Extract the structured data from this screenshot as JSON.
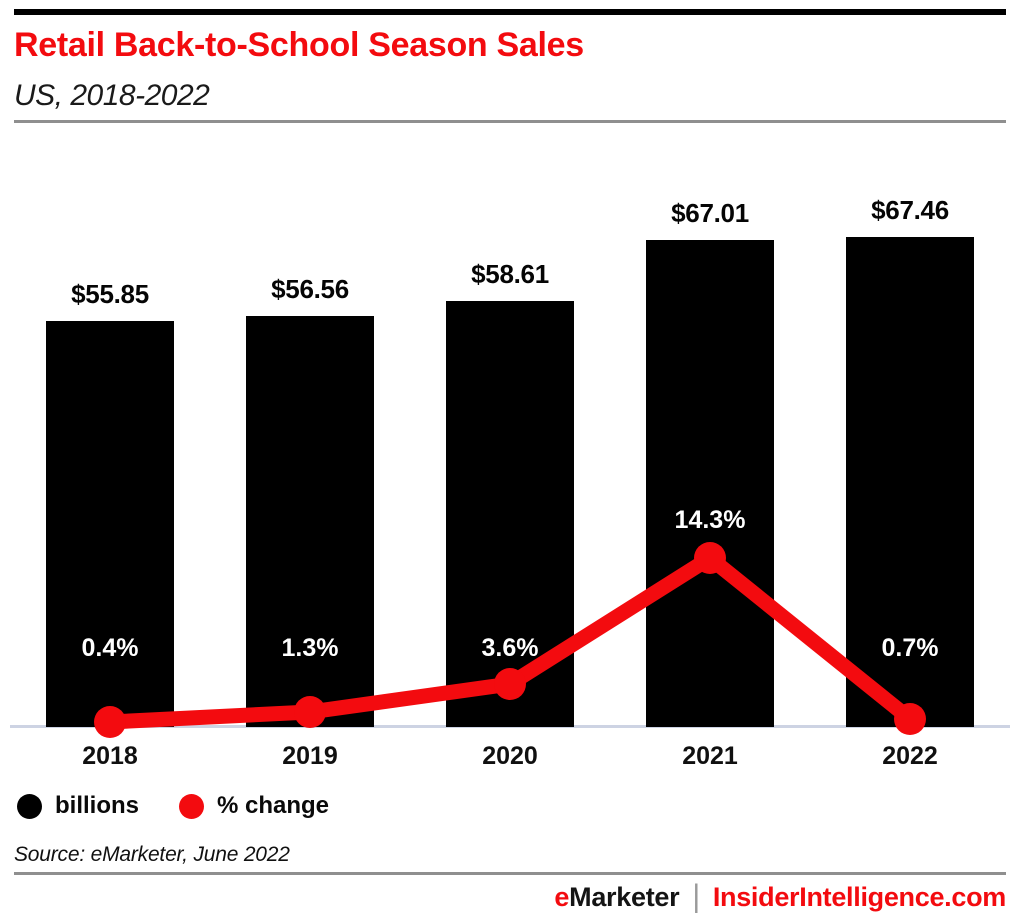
{
  "header": {
    "title": "Retail Back-to-School Season Sales",
    "subtitle": "US, 2018-2022"
  },
  "chart_data": {
    "type": "bar",
    "subtype": "bar-plus-line-combo",
    "title": "Retail Back-to-School Season Sales",
    "subtitle": "US, 2018-2022",
    "categories": [
      "2018",
      "2019",
      "2020",
      "2021",
      "2022"
    ],
    "series": [
      {
        "name": "billions",
        "type": "bar",
        "color": "#000000",
        "values": [
          55.85,
          56.56,
          58.61,
          67.01,
          67.46
        ],
        "data_labels": [
          "$55.85",
          "$56.56",
          "$58.61",
          "$67.01",
          "$67.46"
        ],
        "label_color": "#050505"
      },
      {
        "name": "% change",
        "type": "line",
        "color": "#f30b0f",
        "values": [
          0.4,
          1.3,
          3.6,
          14.3,
          0.7
        ],
        "data_labels": [
          "0.4%",
          "1.3%",
          "3.6%",
          "14.3%",
          "0.7%"
        ],
        "label_color": "#ffffff"
      }
    ],
    "axes": {
      "x_labels_visible": true,
      "y_axis_visible": false,
      "bar_baseline": 0,
      "line_baseline": 0
    },
    "grid": false,
    "legend_position": "bottom-left"
  },
  "source": "Source: eMarketer, June 2022",
  "footer": {
    "brand_red_part": "e",
    "brand_black_part": "Marketer",
    "separator": "|",
    "site": "InsiderIntelligence.com"
  },
  "colors": {
    "accent_red": "#f30b0f",
    "bar_black": "#000000",
    "axis_line": "#cdd3e3",
    "divider_gray": "#8f8f8f",
    "footer_separator_gray": "#9a9a9a",
    "top_rule_black": "#000000"
  }
}
